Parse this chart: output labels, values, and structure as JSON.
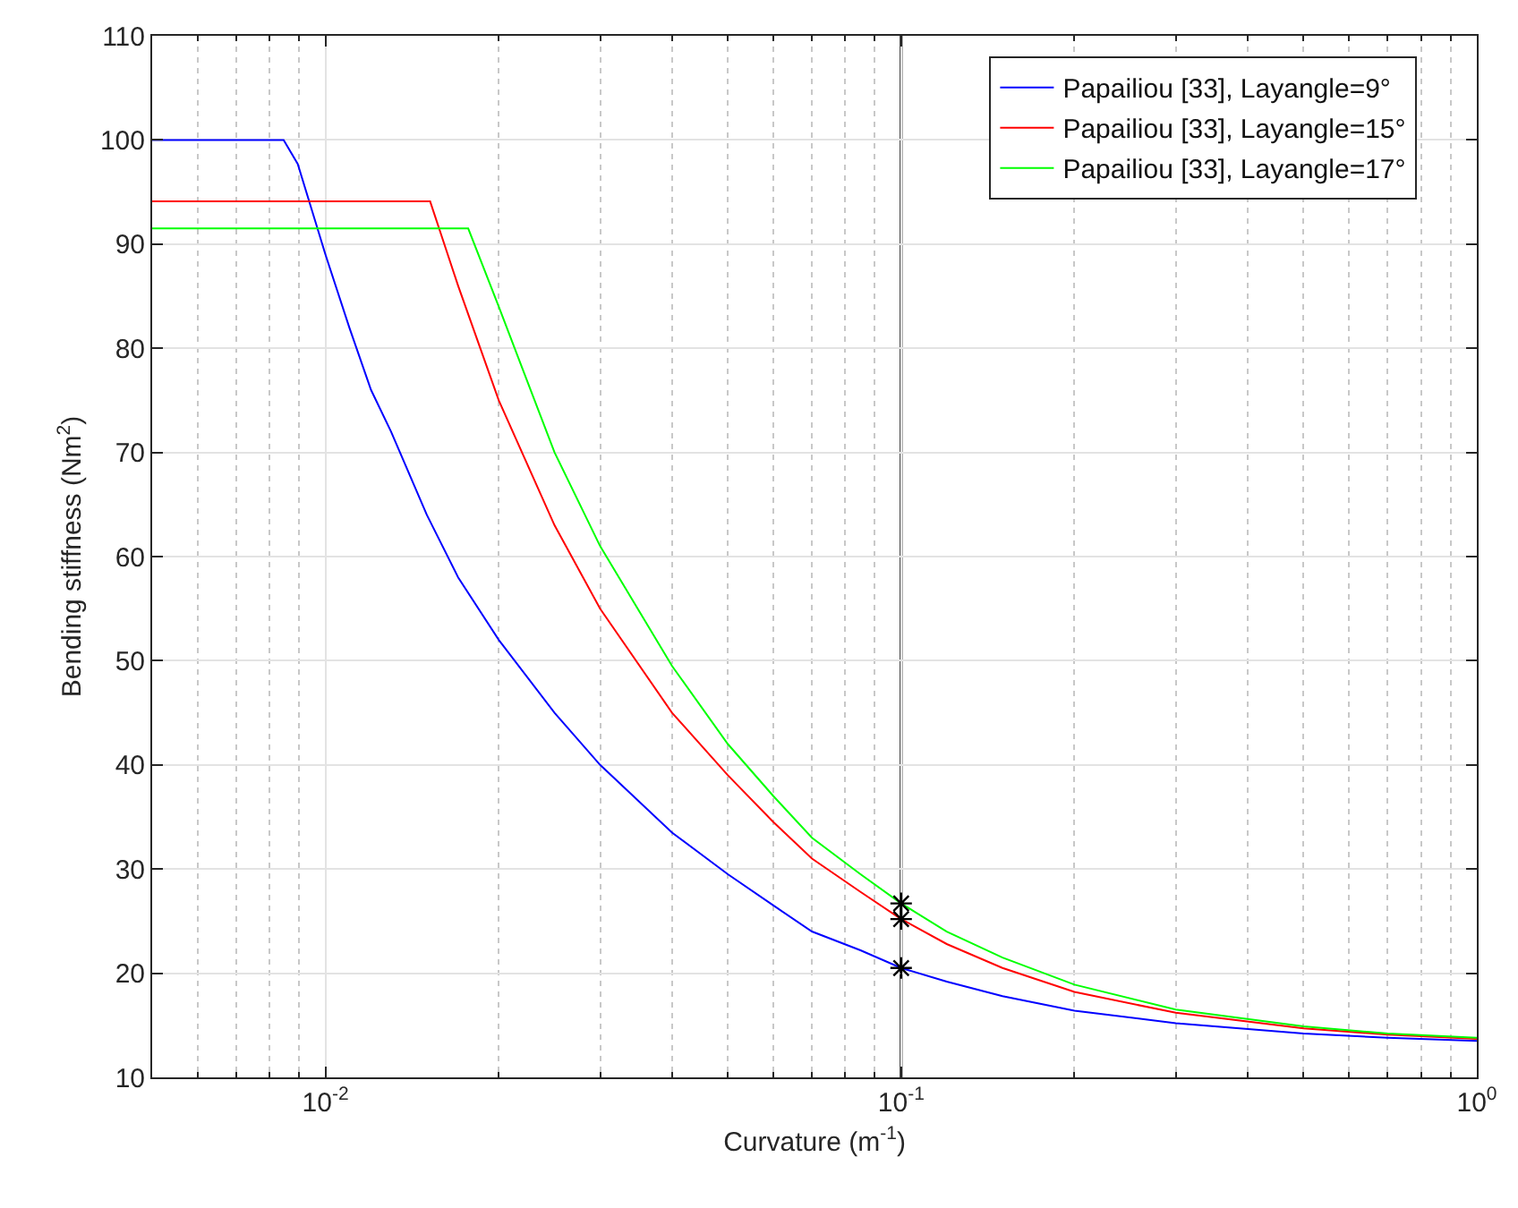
{
  "chart_data": {
    "type": "line",
    "xlabel": "Curvature (m$^{-1}$)",
    "ylabel": "Bending stiffness (Nm$^{2}$)",
    "log": "x",
    "xlim": [
      0.005,
      1
    ],
    "xticks": [
      {
        "value": 0.01,
        "label": "10$^{-2}$"
      },
      {
        "value": 0.1,
        "label": "10$^{-1}$"
      },
      {
        "value": 1,
        "label": "10$^{0}$"
      }
    ],
    "ylim": [
      10,
      110
    ],
    "yticks": [
      10,
      20,
      30,
      40,
      50,
      60,
      70,
      80,
      90,
      100,
      110
    ],
    "grid": true,
    "legend": "top right",
    "marker": "none",
    "line_style": "solid",
    "series": [
      {
        "name": "Papailiou [33], Layangle=9°",
        "color": "#0000ff",
        "x": [
          0.005,
          0.00846,
          0.00895,
          0.01,
          0.011,
          0.012,
          0.013,
          0.015,
          0.017,
          0.02,
          0.025,
          0.03,
          0.04,
          0.05,
          0.06,
          0.07,
          0.085,
          0.1,
          0.12,
          0.15,
          0.2,
          0.3,
          0.5,
          0.7,
          1
        ],
        "values": [
          100,
          100,
          97.7,
          89,
          82,
          76,
          72,
          64,
          58,
          52,
          45,
          40,
          33.5,
          29.5,
          26.5,
          24,
          22.2,
          20.5,
          19.2,
          17.8,
          16.4,
          15.2,
          14.2,
          13.8,
          13.5
        ]
      },
      {
        "name": "Papailiou [33], Layangle=15°",
        "color": "#ff0000",
        "x": [
          0.005,
          0.0152,
          0.017,
          0.02,
          0.025,
          0.03,
          0.04,
          0.05,
          0.06,
          0.07,
          0.085,
          0.1,
          0.12,
          0.15,
          0.2,
          0.3,
          0.5,
          0.7,
          1
        ],
        "values": [
          94.1,
          94.1,
          86,
          75,
          63,
          55,
          45,
          39,
          34.5,
          31,
          27.8,
          25.2,
          22.8,
          20.5,
          18.2,
          16.2,
          14.7,
          14.1,
          13.7
        ]
      },
      {
        "name": "Papailiou [33], Layangle=17°",
        "color": "#00ff00",
        "x": [
          0.005,
          0.0177,
          0.02,
          0.022,
          0.025,
          0.03,
          0.04,
          0.05,
          0.06,
          0.07,
          0.085,
          0.1,
          0.12,
          0.15,
          0.2,
          0.3,
          0.5,
          0.7,
          1
        ],
        "values": [
          91.5,
          91.5,
          84,
          78,
          70,
          61,
          49.5,
          42,
          37,
          33,
          29.5,
          26.7,
          24,
          21.5,
          18.9,
          16.5,
          14.9,
          14.2,
          13.8
        ]
      },
      {
        "type": "scatter",
        "marker": "cross",
        "color": "#000000",
        "x": [
          0.1,
          0.1,
          0.1
        ],
        "values": [
          20.5,
          25.2,
          26.7
        ]
      }
    ],
    "ref_lines": [
      {
        "axis": "x",
        "value": 0.1,
        "color": "#000000",
        "line_style": "solid"
      }
    ]
  }
}
